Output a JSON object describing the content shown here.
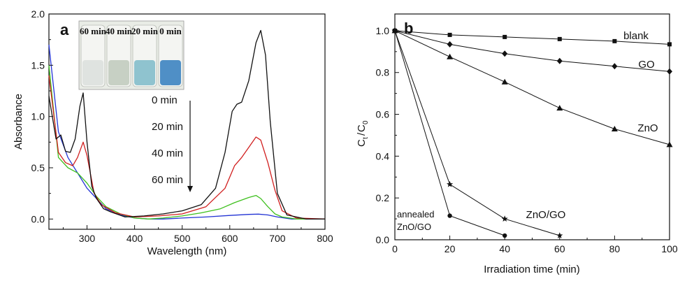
{
  "chart_data": [
    {
      "type": "line",
      "panel_label": "a",
      "xlabel": "Wavelength (nm)",
      "ylabel": "Absorbance",
      "xlim": [
        220,
        800
      ],
      "ylim": [
        -0.1,
        2.0
      ],
      "xticks": [
        300,
        400,
        500,
        600,
        700,
        800
      ],
      "yticks": [
        0.0,
        0.5,
        1.0,
        1.5,
        2.0
      ],
      "grid": false,
      "inset": {
        "photo_labels": [
          "60 min",
          "40 min",
          "20 min",
          "0 min"
        ],
        "photo_colors": [
          "#dfe3e0",
          "#c7d0c4",
          "#8fc3cf",
          "#4f8fc6"
        ]
      },
      "time_labels": [
        "0  min",
        "20 min",
        "40 min",
        "60 min"
      ],
      "series": [
        {
          "time": "0 min",
          "color": "#111111",
          "x": [
            220,
            235,
            245,
            255,
            265,
            275,
            285,
            292,
            300,
            310,
            320,
            335,
            350,
            380,
            420,
            460,
            500,
            540,
            570,
            590,
            605,
            615,
            625,
            640,
            655,
            665,
            675,
            685,
            700,
            720,
            760,
            800
          ],
          "y": [
            1.2,
            0.78,
            0.82,
            0.66,
            0.65,
            0.78,
            1.1,
            1.23,
            0.75,
            0.32,
            0.2,
            0.1,
            0.07,
            0.02,
            0.03,
            0.05,
            0.08,
            0.14,
            0.3,
            0.65,
            1.05,
            1.12,
            1.14,
            1.35,
            1.72,
            1.84,
            1.6,
            0.95,
            0.25,
            0.04,
            0.0,
            0.0
          ]
        },
        {
          "time": "20 min",
          "color": "#d11f1f",
          "x": [
            220,
            240,
            255,
            270,
            280,
            292,
            300,
            315,
            330,
            360,
            400,
            450,
            500,
            550,
            590,
            610,
            625,
            640,
            655,
            665,
            680,
            695,
            710,
            740,
            800
          ],
          "y": [
            1.4,
            0.65,
            0.55,
            0.52,
            0.6,
            0.75,
            0.62,
            0.25,
            0.14,
            0.06,
            0.02,
            0.03,
            0.05,
            0.12,
            0.3,
            0.52,
            0.6,
            0.7,
            0.8,
            0.77,
            0.55,
            0.28,
            0.08,
            0.01,
            0.0
          ]
        },
        {
          "time": "40 min",
          "color": "#3ec01e",
          "x": [
            220,
            240,
            260,
            280,
            300,
            320,
            340,
            370,
            400,
            430,
            460,
            500,
            540,
            580,
            610,
            640,
            655,
            665,
            680,
            695,
            710,
            740,
            800
          ],
          "y": [
            1.5,
            0.6,
            0.5,
            0.45,
            0.35,
            0.22,
            0.12,
            0.05,
            0.01,
            0.0,
            0.01,
            0.03,
            0.06,
            0.1,
            0.16,
            0.21,
            0.23,
            0.2,
            0.12,
            0.05,
            0.02,
            0.0,
            0.0
          ]
        },
        {
          "time": "60 min",
          "color": "#2233d4",
          "x": [
            220,
            240,
            260,
            280,
            300,
            320,
            340,
            370,
            400,
            430,
            460,
            500,
            550,
            600,
            640,
            660,
            680,
            700,
            730,
            800
          ],
          "y": [
            1.7,
            0.85,
            0.6,
            0.45,
            0.3,
            0.2,
            0.1,
            0.04,
            0.01,
            0.0,
            0.0,
            0.01,
            0.02,
            0.035,
            0.045,
            0.048,
            0.04,
            0.02,
            0.0,
            0.0
          ]
        }
      ]
    },
    {
      "type": "line",
      "panel_label": "b",
      "xlabel": "Irradiation time (min)",
      "ylabel": "Ct/C0",
      "ylabel_main": "C",
      "ylabel_sub1": "t",
      "ylabel_sub2": "0",
      "ylabel_slash": "/",
      "xlim": [
        0,
        100
      ],
      "ylim": [
        0.0,
        1.08
      ],
      "xticks": [
        0,
        20,
        40,
        60,
        80,
        100
      ],
      "yticks": [
        0.0,
        0.2,
        0.4,
        0.6,
        0.8,
        1.0
      ],
      "grid": false,
      "series": [
        {
          "name": "blank",
          "marker": "square",
          "x": [
            0,
            20,
            40,
            60,
            80,
            100
          ],
          "y": [
            1.0,
            0.98,
            0.97,
            0.96,
            0.95,
            0.935
          ]
        },
        {
          "name": "GO",
          "marker": "diamond",
          "x": [
            0,
            20,
            40,
            60,
            80,
            100
          ],
          "y": [
            1.0,
            0.935,
            0.89,
            0.855,
            0.83,
            0.805
          ]
        },
        {
          "name": "ZnO",
          "marker": "triangle",
          "x": [
            0,
            20,
            40,
            60,
            80,
            100
          ],
          "y": [
            1.0,
            0.875,
            0.755,
            0.63,
            0.53,
            0.455
          ]
        },
        {
          "name": "ZnO/GO",
          "marker": "star",
          "x": [
            0,
            20,
            40,
            60
          ],
          "y": [
            1.0,
            0.265,
            0.1,
            0.02
          ]
        },
        {
          "name": "annealed ZnO/GO",
          "name_line1": "annealed",
          "name_line2": "ZnO/GO",
          "marker": "circle",
          "x": [
            0,
            20,
            40
          ],
          "y": [
            1.0,
            0.115,
            0.02
          ]
        }
      ]
    }
  ]
}
